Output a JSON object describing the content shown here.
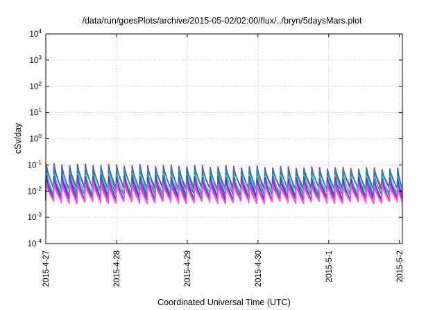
{
  "chart_data": {
    "type": "line",
    "title": "/data/run/goesPlots/archive/2015-05-02/02:00/flux/../bryn/5daysMars.plot",
    "xlabel": "Coordinated Universal Time (UTC)",
    "ylabel": "cSv/day",
    "y_scale": "log",
    "ylim": [
      0.0001,
      10000
    ],
    "y_ticks": [
      {
        "base": "10",
        "exp": "-4",
        "value": 0.0001
      },
      {
        "base": "10",
        "exp": "-3",
        "value": 0.001
      },
      {
        "base": "10",
        "exp": "-2",
        "value": 0.01
      },
      {
        "base": "10",
        "exp": "-1",
        "value": 0.1
      },
      {
        "base": "10",
        "exp": "0",
        "value": 1
      },
      {
        "base": "10",
        "exp": "1",
        "value": 10
      },
      {
        "base": "10",
        "exp": "2",
        "value": 100
      },
      {
        "base": "10",
        "exp": "3",
        "value": 1000
      },
      {
        "base": "10",
        "exp": "4",
        "value": 10000
      }
    ],
    "xlim": [
      "2015-04-27T00:00",
      "2015-05-02T01:00"
    ],
    "x_ticks": [
      {
        "label": "2015-4-27",
        "date": "2015-04-27T00:00"
      },
      {
        "label": "2015-4-28",
        "date": "2015-04-28T00:00"
      },
      {
        "label": "2015-4-29",
        "date": "2015-04-29T00:00"
      },
      {
        "label": "2015-4-30",
        "date": "2015-04-30T00:00"
      },
      {
        "label": "2015-5-1",
        "date": "2015-05-01T00:00"
      },
      {
        "label": "2015-5-2",
        "date": "2015-05-02T00:00"
      }
    ],
    "grid": true,
    "legend": "none",
    "pattern": {
      "description": "sawtooth: sharp rise at each pulse then decay until next pulse",
      "pulse_period_hours": 2.65,
      "first_pulse": "2015-04-27T00:00",
      "last_pulse": "2015-05-02T00:10"
    },
    "series": [
      {
        "color": "#e8202a",
        "peak_early": 0.105,
        "peak_late": 0.07,
        "trough": 0.0115
      },
      {
        "color": "#3b6fd8",
        "peak_early": 0.095,
        "peak_late": 0.07,
        "trough": 0.013
      },
      {
        "color": "#1f8a8a",
        "peak_early": 0.06,
        "peak_late": 0.045,
        "trough": 0.0065
      },
      {
        "color": "#35d4c8",
        "peak_early": 0.045,
        "peak_late": 0.035,
        "trough": 0.0095
      },
      {
        "color": "#2a4fd0",
        "peak_early": 0.04,
        "peak_late": 0.03,
        "trough": 0.005
      },
      {
        "color": "#d81fd8",
        "peak_early": 0.025,
        "peak_late": 0.02,
        "trough": 0.0045
      },
      {
        "color": "#ff4de6",
        "peak_early": 0.02,
        "peak_late": 0.016,
        "trough": 0.0038
      }
    ]
  }
}
